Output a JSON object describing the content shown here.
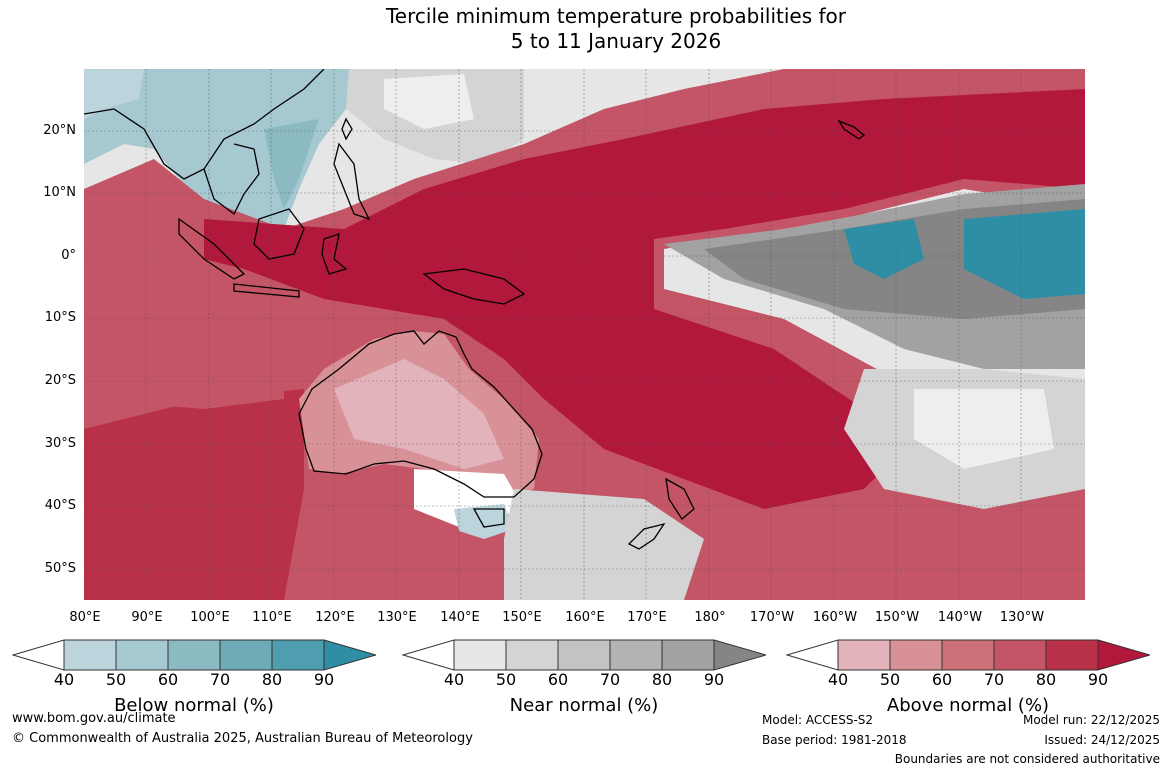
{
  "title": {
    "line1": "Tercile minimum temperature probabilities for",
    "line2": "5 to 11 January 2026"
  },
  "axes": {
    "lat_labels": [
      "20°N",
      "10°N",
      "0°",
      "10°S",
      "20°S",
      "30°S",
      "40°S",
      "50°S"
    ],
    "lon_labels": [
      "80°E",
      "90°E",
      "100°E",
      "110°E",
      "120°E",
      "130°E",
      "140°E",
      "150°E",
      "160°E",
      "170°E",
      "180°",
      "170°W",
      "160°W",
      "150°W",
      "140°W",
      "130°W"
    ]
  },
  "legend": {
    "ticks": [
      "40",
      "50",
      "60",
      "70",
      "80",
      "90"
    ],
    "below": {
      "title": "Below normal (%)",
      "colors": [
        "#ffffff",
        "#bcd4dc",
        "#a6c8d0",
        "#8cbac3",
        "#6eabb7",
        "#4f9eaf",
        "#2e8ea6"
      ]
    },
    "near": {
      "title": "Near normal (%)",
      "colors": [
        "#ffffff",
        "#e6e6e6",
        "#d4d4d4",
        "#c3c3c3",
        "#b3b3b3",
        "#a2a2a2",
        "#858585"
      ]
    },
    "above": {
      "title": "Above normal (%)",
      "colors": [
        "#ffffff",
        "#e3b3bb",
        "#d99198",
        "#cd7078",
        "#c45566",
        "#b93049",
        "#b2183b"
      ]
    }
  },
  "footer": {
    "website": "www.bom.gov.au/climate",
    "copyright": "© Commonwealth of Australia 2025, Australian Bureau of Meteorology",
    "model": "Model: ACCESS-S2",
    "base_period": "Base period: 1981-2018",
    "model_run": "Model run: 22/12/2025",
    "issued": "Issued: 24/12/2025",
    "disclaimer": "Boundaries are not considered authoritative"
  }
}
